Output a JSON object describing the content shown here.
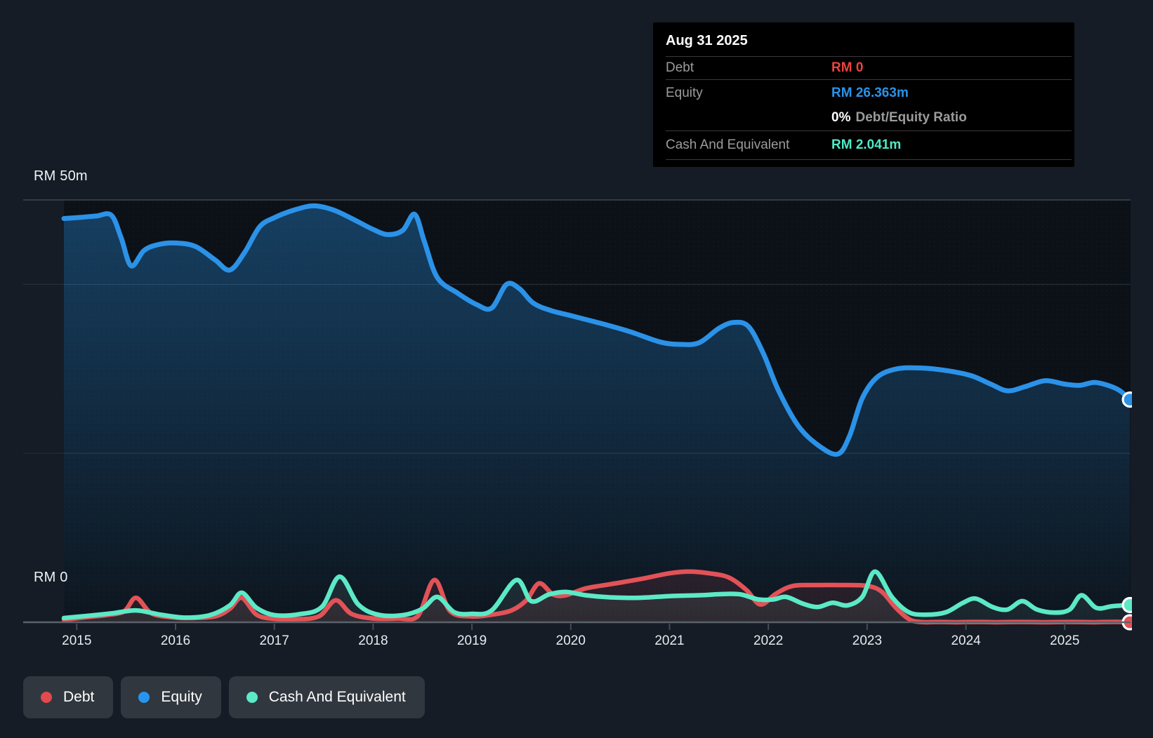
{
  "page": {
    "background": "#151c25",
    "plot_background": "#0c1117"
  },
  "y_axis": {
    "top_label": "RM 50m",
    "zero_label": "RM 0"
  },
  "x_axis": {
    "years": [
      "2015",
      "2016",
      "2017",
      "2018",
      "2019",
      "2020",
      "2021",
      "2022",
      "2023",
      "2024",
      "2025"
    ]
  },
  "tooltip": {
    "date": "Aug 31 2025",
    "debt_label": "Debt",
    "debt_value": "RM 0",
    "equity_label": "Equity",
    "equity_value": "RM 26.363m",
    "ratio_value": "0%",
    "ratio_label": "Debt/Equity Ratio",
    "cash_label": "Cash And Equivalent",
    "cash_value": "RM 2.041m"
  },
  "legend": {
    "items": [
      {
        "label": "Debt",
        "color": "#e24a4d"
      },
      {
        "label": "Equity",
        "color": "#2795ef"
      },
      {
        "label": "Cash And Equivalent",
        "color": "#5ce9c6"
      }
    ]
  },
  "chart_data": {
    "type": "area",
    "title": "Debt, Equity and Cash history",
    "unit": "RM millions",
    "x_range": [
      2014.87,
      2025.66
    ],
    "ylim": [
      0,
      50
    ],
    "grid_values_m": [
      50,
      40,
      20
    ],
    "legend_position": "bottom-left",
    "latest": {
      "date": "Aug 31 2025",
      "debt_m": 0,
      "equity_m": 26.363,
      "cash_m": 2.041,
      "debt_equity_ratio_pct": 0
    },
    "series": [
      {
        "name": "Equity",
        "color": "#2b92e8",
        "points": [
          [
            2014.87,
            47.8
          ],
          [
            2015.05,
            47.95
          ],
          [
            2015.2,
            48.1
          ],
          [
            2015.35,
            48.2
          ],
          [
            2015.45,
            45.5
          ],
          [
            2015.55,
            42.2
          ],
          [
            2015.68,
            44.0
          ],
          [
            2015.82,
            44.7
          ],
          [
            2016.0,
            44.9
          ],
          [
            2016.2,
            44.5
          ],
          [
            2016.4,
            42.9
          ],
          [
            2016.55,
            41.7
          ],
          [
            2016.7,
            43.8
          ],
          [
            2016.85,
            46.8
          ],
          [
            2017.0,
            47.9
          ],
          [
            2017.2,
            48.8
          ],
          [
            2017.4,
            49.3
          ],
          [
            2017.6,
            48.8
          ],
          [
            2017.8,
            47.7
          ],
          [
            2018.0,
            46.5
          ],
          [
            2018.15,
            45.9
          ],
          [
            2018.3,
            46.4
          ],
          [
            2018.42,
            48.3
          ],
          [
            2018.52,
            45.0
          ],
          [
            2018.65,
            40.8
          ],
          [
            2018.85,
            39.0
          ],
          [
            2019.05,
            37.6
          ],
          [
            2019.2,
            37.2
          ],
          [
            2019.35,
            40.0
          ],
          [
            2019.48,
            39.5
          ],
          [
            2019.62,
            37.8
          ],
          [
            2019.8,
            36.9
          ],
          [
            2020.0,
            36.3
          ],
          [
            2020.3,
            35.4
          ],
          [
            2020.6,
            34.4
          ],
          [
            2020.9,
            33.2
          ],
          [
            2021.1,
            32.9
          ],
          [
            2021.3,
            33.1
          ],
          [
            2021.5,
            34.8
          ],
          [
            2021.65,
            35.5
          ],
          [
            2021.8,
            35.0
          ],
          [
            2021.95,
            31.8
          ],
          [
            2022.1,
            27.5
          ],
          [
            2022.3,
            23.3
          ],
          [
            2022.5,
            21.0
          ],
          [
            2022.7,
            19.9
          ],
          [
            2022.82,
            22.0
          ],
          [
            2022.95,
            26.5
          ],
          [
            2023.1,
            29.0
          ],
          [
            2023.3,
            30.0
          ],
          [
            2023.55,
            30.1
          ],
          [
            2023.8,
            29.8
          ],
          [
            2024.05,
            29.2
          ],
          [
            2024.25,
            28.2
          ],
          [
            2024.42,
            27.4
          ],
          [
            2024.6,
            27.9
          ],
          [
            2024.8,
            28.6
          ],
          [
            2025.0,
            28.2
          ],
          [
            2025.15,
            28.05
          ],
          [
            2025.3,
            28.4
          ],
          [
            2025.45,
            28.0
          ],
          [
            2025.56,
            27.4
          ],
          [
            2025.66,
            26.363
          ]
        ]
      },
      {
        "name": "Debt",
        "color": "#e25257",
        "points": [
          [
            2014.87,
            0.3
          ],
          [
            2015.1,
            0.6
          ],
          [
            2015.3,
            0.85
          ],
          [
            2015.48,
            1.3
          ],
          [
            2015.6,
            2.9
          ],
          [
            2015.75,
            1.1
          ],
          [
            2015.95,
            0.6
          ],
          [
            2016.15,
            0.5
          ],
          [
            2016.4,
            0.7
          ],
          [
            2016.55,
            1.6
          ],
          [
            2016.67,
            2.9
          ],
          [
            2016.82,
            0.9
          ],
          [
            2017.0,
            0.4
          ],
          [
            2017.2,
            0.35
          ],
          [
            2017.45,
            0.7
          ],
          [
            2017.62,
            2.6
          ],
          [
            2017.78,
            1.0
          ],
          [
            2018.0,
            0.45
          ],
          [
            2018.25,
            0.45
          ],
          [
            2018.45,
            0.7
          ],
          [
            2018.62,
            5.0
          ],
          [
            2018.78,
            1.3
          ],
          [
            2019.0,
            0.7
          ],
          [
            2019.2,
            0.9
          ],
          [
            2019.4,
            1.4
          ],
          [
            2019.55,
            2.6
          ],
          [
            2019.68,
            4.6
          ],
          [
            2019.82,
            3.3
          ],
          [
            2019.95,
            3.2
          ],
          [
            2020.15,
            4.0
          ],
          [
            2020.4,
            4.5
          ],
          [
            2020.7,
            5.1
          ],
          [
            2021.0,
            5.8
          ],
          [
            2021.2,
            6.0
          ],
          [
            2021.4,
            5.8
          ],
          [
            2021.6,
            5.3
          ],
          [
            2021.78,
            3.8
          ],
          [
            2021.92,
            2.1
          ],
          [
            2022.08,
            3.4
          ],
          [
            2022.25,
            4.3
          ],
          [
            2022.5,
            4.4
          ],
          [
            2022.75,
            4.4
          ],
          [
            2023.0,
            4.3
          ],
          [
            2023.15,
            3.6
          ],
          [
            2023.3,
            1.6
          ],
          [
            2023.45,
            0.2
          ],
          [
            2023.6,
            0
          ],
          [
            2023.9,
            0
          ],
          [
            2024.3,
            0
          ],
          [
            2024.8,
            0
          ],
          [
            2025.3,
            0
          ],
          [
            2025.66,
            0
          ]
        ]
      },
      {
        "name": "Cash And Equivalent",
        "color": "#5ce9c6",
        "points": [
          [
            2014.87,
            0.5
          ],
          [
            2015.1,
            0.75
          ],
          [
            2015.35,
            1.05
          ],
          [
            2015.6,
            1.4
          ],
          [
            2015.85,
            0.9
          ],
          [
            2016.1,
            0.55
          ],
          [
            2016.35,
            0.85
          ],
          [
            2016.55,
            2.0
          ],
          [
            2016.67,
            3.5
          ],
          [
            2016.82,
            1.7
          ],
          [
            2017.0,
            0.85
          ],
          [
            2017.25,
            0.95
          ],
          [
            2017.48,
            1.8
          ],
          [
            2017.66,
            5.4
          ],
          [
            2017.85,
            2.1
          ],
          [
            2018.05,
            0.9
          ],
          [
            2018.3,
            0.85
          ],
          [
            2018.5,
            1.6
          ],
          [
            2018.65,
            3.0
          ],
          [
            2018.82,
            1.2
          ],
          [
            2019.0,
            1.0
          ],
          [
            2019.2,
            1.4
          ],
          [
            2019.45,
            5.0
          ],
          [
            2019.6,
            2.5
          ],
          [
            2019.78,
            3.3
          ],
          [
            2019.95,
            3.6
          ],
          [
            2020.15,
            3.2
          ],
          [
            2020.4,
            2.95
          ],
          [
            2020.7,
            2.9
          ],
          [
            2021.0,
            3.1
          ],
          [
            2021.3,
            3.2
          ],
          [
            2021.55,
            3.35
          ],
          [
            2021.72,
            3.3
          ],
          [
            2021.9,
            2.7
          ],
          [
            2022.05,
            2.7
          ],
          [
            2022.18,
            3.0
          ],
          [
            2022.35,
            2.2
          ],
          [
            2022.5,
            1.8
          ],
          [
            2022.65,
            2.3
          ],
          [
            2022.8,
            2.0
          ],
          [
            2022.95,
            3.0
          ],
          [
            2023.08,
            6.0
          ],
          [
            2023.25,
            3.0
          ],
          [
            2023.42,
            1.2
          ],
          [
            2023.6,
            0.9
          ],
          [
            2023.8,
            1.2
          ],
          [
            2023.97,
            2.3
          ],
          [
            2024.1,
            2.8
          ],
          [
            2024.27,
            1.8
          ],
          [
            2024.42,
            1.5
          ],
          [
            2024.57,
            2.5
          ],
          [
            2024.72,
            1.5
          ],
          [
            2024.9,
            1.15
          ],
          [
            2025.05,
            1.5
          ],
          [
            2025.17,
            3.2
          ],
          [
            2025.32,
            1.7
          ],
          [
            2025.48,
            1.9
          ],
          [
            2025.66,
            2.041
          ]
        ]
      }
    ]
  }
}
